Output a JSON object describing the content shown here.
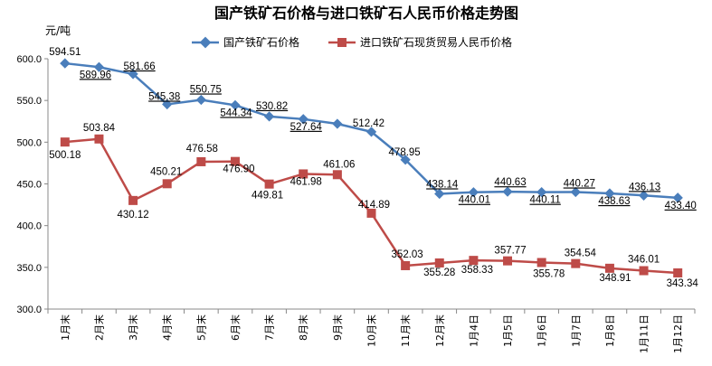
{
  "chart_data": {
    "type": "line",
    "title": "国产铁矿石价格与进口铁矿石人民币价格走势图",
    "ylabel": "元/吨",
    "xlabel": "",
    "ylim": [
      300,
      600
    ],
    "yticks": [
      "300.0",
      "350.0",
      "400.0",
      "450.0",
      "500.0",
      "550.0",
      "600.0"
    ],
    "grid": false,
    "legend_position": "top-center",
    "categories": [
      "1月末",
      "2月末",
      "3月末",
      "4月末",
      "5月末",
      "6月末",
      "7月末",
      "8月末",
      "9月末",
      "10月末",
      "11月末",
      "12月末",
      "1月4日",
      "1月5日",
      "1月6日",
      "1月7日",
      "1月8日",
      "1月11日",
      "1月12日"
    ],
    "series": [
      {
        "name": "国产铁矿石价格",
        "color": "#4a7ebb",
        "marker": "diamond",
        "values": [
          594.51,
          589.96,
          581.66,
          545.38,
          550.75,
          544.34,
          530.82,
          527.64,
          522.0,
          512.42,
          478.95,
          438.14,
          440.01,
          440.63,
          440.11,
          440.27,
          438.63,
          436.13,
          433.4
        ],
        "labels": [
          "594.51",
          "589.96",
          "581.66",
          "545.38",
          "550.75",
          "544.34",
          "530.82",
          "527.64",
          "",
          "512.42",
          "478.95",
          "438.14",
          "440.01",
          "440.63",
          "440.11",
          "440.27",
          "438.63",
          "436.13",
          "433.40"
        ]
      },
      {
        "name": "进口铁矿石现货贸易人民币价格",
        "color": "#be4b48",
        "marker": "square",
        "values": [
          500.18,
          503.84,
          430.12,
          450.21,
          476.58,
          476.9,
          449.81,
          461.98,
          461.06,
          414.89,
          352.03,
          355.28,
          358.33,
          357.77,
          355.78,
          354.54,
          348.91,
          346.01,
          343.34
        ],
        "labels": [
          "500.18",
          "503.84",
          "430.12",
          "450.21",
          "476.58",
          "476.90",
          "449.81",
          "461.98",
          "461.06",
          "414.89",
          "352.03",
          "355.28",
          "358.33",
          "357.77",
          "355.78",
          "354.54",
          "348.91",
          "346.01",
          "343.34"
        ]
      }
    ]
  }
}
